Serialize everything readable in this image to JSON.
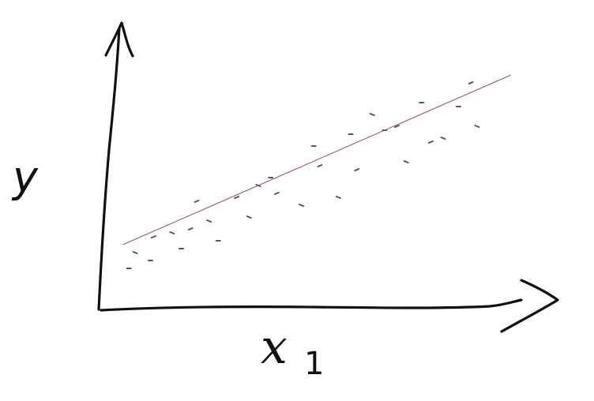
{
  "axes": {
    "y_label": "y",
    "x_label": "x",
    "x_subscript": "1"
  },
  "colors": {
    "ink": "#111111",
    "points": "#555555",
    "fit_line": "#a05a5a"
  },
  "chart_data": {
    "type": "scatter",
    "title": "",
    "xlabel": "x1",
    "ylabel": "y",
    "grid": false,
    "legend": "none",
    "ticks": "none",
    "points": [
      [
        1.0,
        1.4
      ],
      [
        1.5,
        1.2
      ],
      [
        1.6,
        1.8
      ],
      [
        2.2,
        1.9
      ],
      [
        2.5,
        1.5
      ],
      [
        3.0,
        2.7
      ],
      [
        3.4,
        2.2
      ],
      [
        3.7,
        1.7
      ],
      [
        4.3,
        2.8
      ],
      [
        4.7,
        2.3
      ],
      [
        5.4,
        3.3
      ],
      [
        5.6,
        2.9
      ],
      [
        6.4,
        2.6
      ],
      [
        6.8,
        4.1
      ],
      [
        7.0,
        3.6
      ],
      [
        7.6,
        2.8
      ],
      [
        8.0,
        4.4
      ],
      [
        8.2,
        3.5
      ],
      [
        8.7,
        4.9
      ],
      [
        9.1,
        4.5
      ],
      [
        9.5,
        4.6
      ],
      [
        9.8,
        3.7
      ],
      [
        10.3,
        5.2
      ],
      [
        10.6,
        4.2
      ],
      [
        11.0,
        4.3
      ],
      [
        11.5,
        5.1
      ],
      [
        11.9,
        5.7
      ],
      [
        12.1,
        4.6
      ],
      [
        0.8,
        1.0
      ],
      [
        2.8,
        2.0
      ],
      [
        5.0,
        3.1
      ]
    ],
    "fit_line": {
      "x": [
        0.6,
        13.2
      ],
      "y": [
        1.6,
        5.9
      ]
    },
    "xlim": [
      0,
      14
    ],
    "ylim": [
      0,
      7
    ]
  }
}
